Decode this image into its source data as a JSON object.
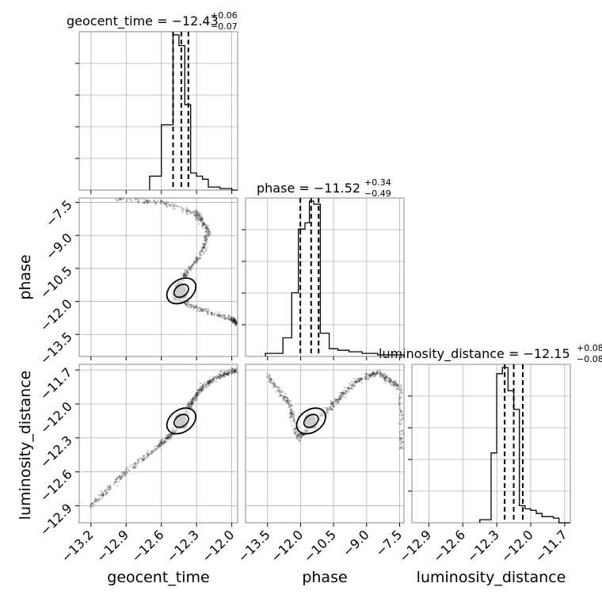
{
  "chart_data": {
    "type": "corner",
    "parameters": [
      {
        "name": "geocent_time",
        "label": "geocent_time",
        "median": "−12.43",
        "plus": "+0.06",
        "minus": "−0.07",
        "range": [
          -13.3,
          -11.95
        ],
        "ticks": [
          -13.2,
          -12.9,
          -12.6,
          -12.3,
          -12.0
        ],
        "tick_labels": [
          "−13.2",
          "−12.9",
          "−12.6",
          "−12.3",
          "−12.0"
        ]
      },
      {
        "name": "phase",
        "label": "phase",
        "median": "−11.52",
        "plus": "+0.34",
        "minus": "−0.49",
        "range": [
          -14.5,
          -7.3
        ],
        "ticks": [
          -13.5,
          -12.0,
          -10.5,
          -9.0,
          -7.5
        ],
        "tick_labels": [
          "−13.5",
          "−12.0",
          "−10.5",
          "−9.0",
          "−7.5"
        ]
      },
      {
        "name": "luminosity_distance",
        "label": "luminosity_distance",
        "median": "−12.15",
        "plus": "+0.08",
        "minus": "−0.08",
        "range": [
          -13.05,
          -11.65
        ],
        "ticks": [
          -12.9,
          -12.6,
          -12.3,
          -12.0,
          -11.7
        ],
        "tick_labels": [
          "−12.9",
          "−12.6",
          "−12.3",
          "−12.0",
          "−11.7"
        ]
      }
    ],
    "titles": [
      "geocent_time = −12.43",
      "phase = −11.52",
      "luminosity_distance = −12.15"
    ],
    "histograms": [
      {
        "param": "geocent_time",
        "edges": [
          -12.7,
          -12.6,
          -12.5,
          -12.45,
          -12.4,
          -12.35,
          -12.3,
          -12.25,
          -12.2,
          -12.1,
          -12.0,
          -11.95
        ],
        "counts": [
          0.09,
          0.42,
          1.0,
          0.93,
          0.55,
          0.11,
          0.09,
          0.07,
          0.02,
          0.01,
          0.0
        ]
      },
      {
        "param": "phase",
        "edges": [
          -13.6,
          -12.8,
          -12.4,
          -12.1,
          -11.8,
          -11.6,
          -11.4,
          -11.1,
          -10.7,
          -10.3,
          -9.8,
          -9.2,
          -8.5,
          -7.8,
          -7.3
        ],
        "counts": [
          0.02,
          0.12,
          0.41,
          0.82,
          0.86,
          1.0,
          0.98,
          0.15,
          0.05,
          0.04,
          0.03,
          0.02,
          0.01,
          0.01
        ]
      },
      {
        "param": "luminosity_distance",
        "edges": [
          -12.45,
          -12.35,
          -12.3,
          -12.25,
          -12.2,
          -12.15,
          -12.1,
          -12.05,
          -12.0,
          -11.95,
          -11.9,
          -11.85,
          -11.8,
          -11.75,
          -11.7,
          -11.65
        ],
        "counts": [
          0.02,
          0.45,
          0.96,
          1.0,
          0.85,
          0.73,
          0.11,
          0.09,
          0.08,
          0.06,
          0.04,
          0.04,
          0.03,
          0.0,
          0.0
        ]
      }
    ],
    "quantiles": [
      [
        -12.5,
        -12.43,
        -12.37
      ],
      [
        -12.01,
        -11.52,
        -11.18
      ],
      [
        -12.23,
        -12.15,
        -12.07
      ]
    ],
    "scatter_trends": [
      {
        "x": "geocent_time",
        "y": "phase",
        "path": [
          [
            -13.0,
            -7.3
          ],
          [
            -12.6,
            -7.5
          ],
          [
            -12.3,
            -8.0
          ],
          [
            -12.2,
            -8.8
          ],
          [
            -12.25,
            -9.8
          ],
          [
            -12.4,
            -10.8
          ],
          [
            -12.5,
            -11.8
          ],
          [
            -12.3,
            -12.3
          ],
          [
            -12.0,
            -12.8
          ],
          [
            -11.95,
            -13.0
          ]
        ]
      },
      {
        "x": "geocent_time",
        "y": "luminosity_distance",
        "path": [
          [
            -13.2,
            -12.9
          ],
          [
            -12.9,
            -12.6
          ],
          [
            -12.6,
            -12.35
          ],
          [
            -12.45,
            -12.2
          ],
          [
            -12.35,
            -12.0
          ],
          [
            -12.25,
            -11.85
          ],
          [
            -12.1,
            -11.75
          ],
          [
            -11.95,
            -11.7
          ]
        ]
      },
      {
        "x": "phase",
        "y": "luminosity_distance",
        "path": [
          [
            -13.5,
            -11.75
          ],
          [
            -12.5,
            -12.0
          ],
          [
            -12.1,
            -12.3
          ],
          [
            -11.5,
            -12.2
          ],
          [
            -10.5,
            -12.0
          ],
          [
            -9.5,
            -11.8
          ],
          [
            -8.5,
            -11.72
          ],
          [
            -7.5,
            -11.85
          ],
          [
            -7.4,
            -12.4
          ]
        ]
      }
    ],
    "ylim_hist": [
      0,
      1.02
    ]
  }
}
